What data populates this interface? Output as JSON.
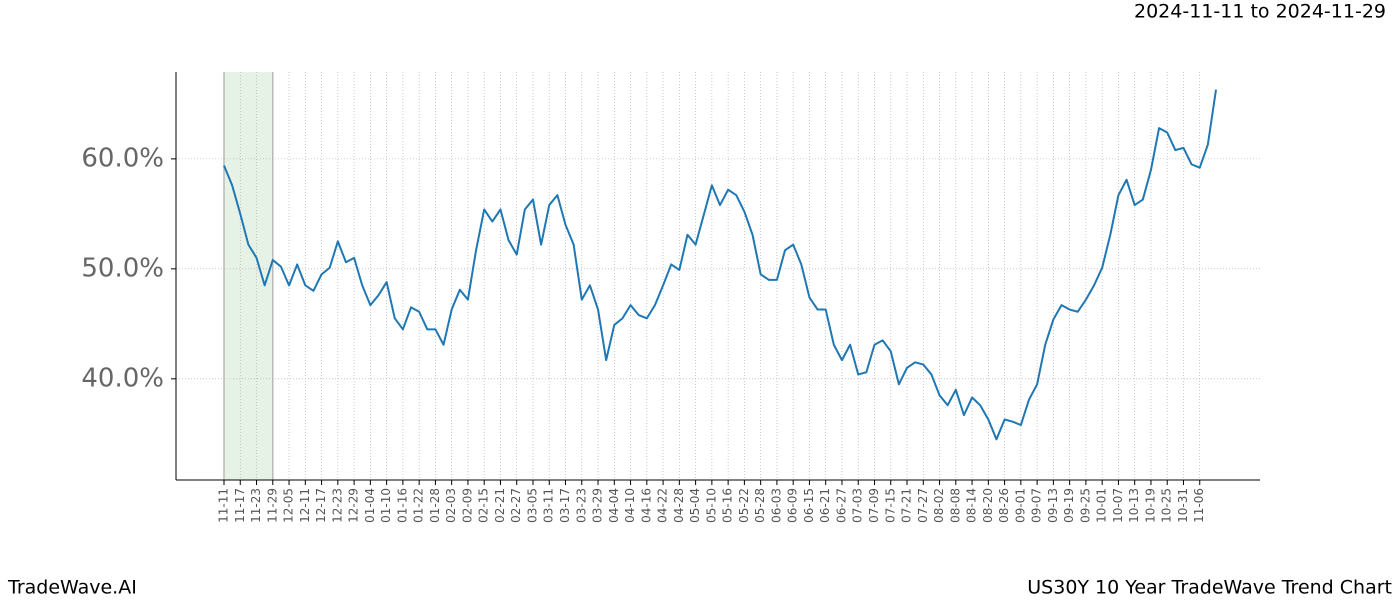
{
  "chart_data": {
    "type": "line",
    "title": "US30Y 10 Year TradeWave Trend Chart",
    "date_range": "2024-11-11 to 2024-11-29",
    "brand": "TradeWave.AI",
    "categories": [
      "11-11",
      null,
      "11-17",
      null,
      "11-23",
      null,
      "11-29",
      null,
      "12-05",
      null,
      "12-11",
      null,
      "12-17",
      null,
      "12-23",
      null,
      "12-29",
      null,
      "01-04",
      null,
      "01-10",
      null,
      "01-16",
      null,
      "01-22",
      null,
      "01-28",
      null,
      "02-03",
      null,
      "02-09",
      null,
      "02-15",
      null,
      "02-21",
      null,
      "02-27",
      null,
      "03-05",
      null,
      "03-11",
      null,
      "03-17",
      null,
      "03-23",
      null,
      "03-29",
      null,
      "04-04",
      null,
      "04-10",
      null,
      "04-16",
      null,
      "04-22",
      null,
      "04-28",
      null,
      "05-04",
      null,
      "05-10",
      null,
      "05-16",
      null,
      "05-22",
      null,
      "05-28",
      null,
      "06-03",
      null,
      "06-09",
      null,
      "06-15",
      null,
      "06-21",
      null,
      "06-27",
      null,
      "07-03",
      null,
      "07-09",
      null,
      "07-15",
      null,
      "07-21",
      null,
      "07-27",
      null,
      "08-02",
      null,
      "08-08",
      null,
      "08-14",
      null,
      "08-20",
      null,
      "08-26",
      null,
      "09-01",
      null,
      "09-07",
      null,
      "09-13",
      null,
      "09-19",
      null,
      "09-25",
      null,
      "10-01",
      null,
      "10-07",
      null,
      "10-13",
      null,
      "10-19",
      null,
      "10-25",
      null,
      "10-31",
      null,
      "11-06",
      null,
      null
    ],
    "values": [
      59.4,
      57.6,
      55,
      52.2,
      51,
      48.5,
      50.8,
      50.2,
      48.5,
      50.4,
      48.5,
      48,
      49.5,
      50.1,
      52.5,
      50.6,
      51,
      48.5,
      46.7,
      47.6,
      48.8,
      45.5,
      44.5,
      46.5,
      46.1,
      44.5,
      44.5,
      43.1,
      46.3,
      48.1,
      47.2,
      51.7,
      55.4,
      54.3,
      55.4,
      52.6,
      51.3,
      55.4,
      56.3,
      52.2,
      55.8,
      56.7,
      54,
      52.2,
      47.2,
      48.5,
      46.3,
      41.7,
      44.9,
      45.5,
      46.7,
      45.8,
      45.5,
      46.7,
      48.5,
      50.4,
      49.9,
      53.1,
      52.2,
      54.9,
      57.6,
      55.8,
      57.2,
      56.7,
      55.2,
      53.1,
      49.5,
      49,
      49,
      51.7,
      52.2,
      50.4,
      47.4,
      46.3,
      46.3,
      43.1,
      41.7,
      43.1,
      40.4,
      40.6,
      43.1,
      43.5,
      42.5,
      39.5,
      41,
      41.5,
      41.3,
      40.4,
      38.5,
      37.6,
      39,
      36.7,
      38.3,
      37.6,
      36.3,
      34.5,
      36.3,
      36.1,
      35.8,
      38.1,
      39.5,
      43.1,
      45.4,
      46.7,
      46.3,
      46.1,
      47.2,
      48.5,
      50.1,
      53.1,
      56.7,
      58.1,
      55.8,
      56.3,
      59,
      62.8,
      62.4,
      60.8,
      61,
      59.5,
      59.2,
      61.3,
      66.3
    ],
    "color": "#1f77b4",
    "ylim": [
      30.8,
      67.9
    ],
    "yticks": [
      {
        "value": 40,
        "label": "40.0%"
      },
      {
        "value": 50,
        "label": "50.0%"
      },
      {
        "value": 60,
        "label": "60.0%"
      }
    ],
    "grid": true,
    "highlight": {
      "from": "11-11",
      "to": "11-29",
      "color": "#e6f2e6"
    }
  }
}
